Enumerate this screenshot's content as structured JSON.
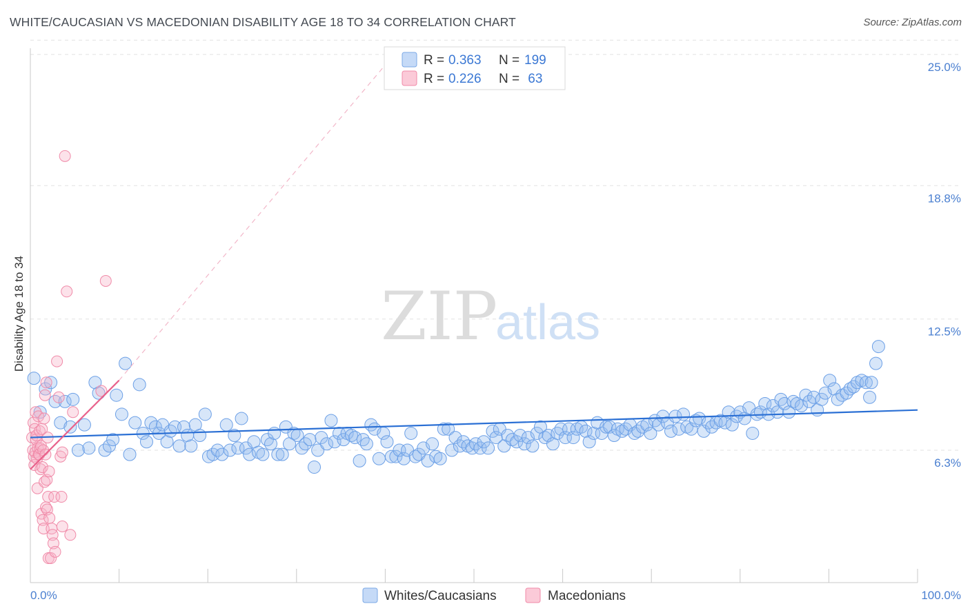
{
  "title": "WHITE/CAUCASIAN VS MACEDONIAN DISABILITY AGE 18 TO 34 CORRELATION CHART",
  "source": "Source: ZipAtlas.com",
  "watermark": {
    "part1": "ZIP",
    "part2": "atlas"
  },
  "colors": {
    "blue": "#6b9fe6",
    "blue_line": "#2a6fd4",
    "pink": "#f08aa8",
    "pink_line": "#e8608a",
    "tick_text": "#4a7fd0"
  },
  "chart_data": {
    "type": "scatter",
    "title": "WHITE/CAUCASIAN VS MACEDONIAN DISABILITY AGE 18 TO 34 CORRELATION CHART",
    "xlabel": "",
    "ylabel": "Disability Age 18 to 34",
    "xlim": [
      0,
      100
    ],
    "ylim": [
      0,
      26
    ],
    "y_ticks": [
      {
        "value": 6.3,
        "label": "6.3%"
      },
      {
        "value": 12.5,
        "label": "12.5%"
      },
      {
        "value": 18.8,
        "label": "18.8%"
      },
      {
        "value": 25.0,
        "label": "25.0%"
      }
    ],
    "x_tick_labels": {
      "min": "0.0%",
      "max": "100.0%"
    },
    "grid": "horizontal-dashed",
    "legend_placement": "top-center",
    "legend": [
      {
        "r_label": "R = ",
        "r": "0.363",
        "n_label": "N = ",
        "n": "199"
      },
      {
        "r_label": "R = ",
        "r": "0.226",
        "n_label": "N = ",
        "n": " 63"
      }
    ],
    "series": [
      {
        "name": "Whites/Caucasians",
        "color": "#6b9fe6",
        "trend": {
          "x": [
            0,
            100
          ],
          "y": [
            6.9,
            8.2
          ]
        },
        "points": [
          [
            0.4,
            9.7
          ],
          [
            1.1,
            8.1
          ],
          [
            1.7,
            9.2
          ],
          [
            2.3,
            9.5
          ],
          [
            2.8,
            8.6
          ],
          [
            3.4,
            7.6
          ],
          [
            3.9,
            8.6
          ],
          [
            4.5,
            7.4
          ],
          [
            4.8,
            8.7
          ],
          [
            5.4,
            6.3
          ],
          [
            6.1,
            7.5
          ],
          [
            6.6,
            6.4
          ],
          [
            7.3,
            9.5
          ],
          [
            7.7,
            9.0
          ],
          [
            8.4,
            6.3
          ],
          [
            8.9,
            6.5
          ],
          [
            9.3,
            6.8
          ],
          [
            9.7,
            8.9
          ],
          [
            10.3,
            8.0
          ],
          [
            10.7,
            10.4
          ],
          [
            11.2,
            6.1
          ],
          [
            11.8,
            7.6
          ],
          [
            12.3,
            9.4
          ],
          [
            12.7,
            7.1
          ],
          [
            13.1,
            6.7
          ],
          [
            13.6,
            7.6
          ],
          [
            14.1,
            7.4
          ],
          [
            14.5,
            7.1
          ],
          [
            14.9,
            7.5
          ],
          [
            15.4,
            6.7
          ],
          [
            15.8,
            7.2
          ],
          [
            16.3,
            7.4
          ],
          [
            16.8,
            6.5
          ],
          [
            17.3,
            7.4
          ],
          [
            17.7,
            7.0
          ],
          [
            18.1,
            6.5
          ],
          [
            18.6,
            7.5
          ],
          [
            19.1,
            7.0
          ],
          [
            19.7,
            8.0
          ],
          [
            20.1,
            6.0
          ],
          [
            20.6,
            6.1
          ],
          [
            21.1,
            6.3
          ],
          [
            21.6,
            6.1
          ],
          [
            22.1,
            7.5
          ],
          [
            22.5,
            6.3
          ],
          [
            23.0,
            7.0
          ],
          [
            23.4,
            6.4
          ],
          [
            23.8,
            7.8
          ],
          [
            24.3,
            6.4
          ],
          [
            24.7,
            6.1
          ],
          [
            25.2,
            6.7
          ],
          [
            25.7,
            6.2
          ],
          [
            26.2,
            6.1
          ],
          [
            26.7,
            6.8
          ],
          [
            27.1,
            6.6
          ],
          [
            27.5,
            7.1
          ],
          [
            27.9,
            6.1
          ],
          [
            28.4,
            6.1
          ],
          [
            28.8,
            7.4
          ],
          [
            29.2,
            6.6
          ],
          [
            29.7,
            7.1
          ],
          [
            30.1,
            7.0
          ],
          [
            30.6,
            6.4
          ],
          [
            31.0,
            6.6
          ],
          [
            31.5,
            6.8
          ],
          [
            32.0,
            5.5
          ],
          [
            32.4,
            6.3
          ],
          [
            32.8,
            6.9
          ],
          [
            33.4,
            6.6
          ],
          [
            33.9,
            7.7
          ],
          [
            34.3,
            6.7
          ],
          [
            34.8,
            7.1
          ],
          [
            35.3,
            6.8
          ],
          [
            35.7,
            7.1
          ],
          [
            36.2,
            7.0
          ],
          [
            36.6,
            6.9
          ],
          [
            37.1,
            5.8
          ],
          [
            37.5,
            6.8
          ],
          [
            37.9,
            6.6
          ],
          [
            38.4,
            7.5
          ],
          [
            38.8,
            7.3
          ],
          [
            39.3,
            5.9
          ],
          [
            39.8,
            7.1
          ],
          [
            40.2,
            6.7
          ],
          [
            40.7,
            6.0
          ],
          [
            41.2,
            6.0
          ],
          [
            41.6,
            6.3
          ],
          [
            42.1,
            5.9
          ],
          [
            42.5,
            6.3
          ],
          [
            42.9,
            7.1
          ],
          [
            43.4,
            6.0
          ],
          [
            43.8,
            6.1
          ],
          [
            44.3,
            6.4
          ],
          [
            44.8,
            5.8
          ],
          [
            45.3,
            6.6
          ],
          [
            45.7,
            6.0
          ],
          [
            46.2,
            5.9
          ],
          [
            46.6,
            7.3
          ],
          [
            47.1,
            7.3
          ],
          [
            47.5,
            6.3
          ],
          [
            47.9,
            6.9
          ],
          [
            48.4,
            6.5
          ],
          [
            48.8,
            6.7
          ],
          [
            49.3,
            6.5
          ],
          [
            49.8,
            6.4
          ],
          [
            50.2,
            6.6
          ],
          [
            50.7,
            6.4
          ],
          [
            51.1,
            6.7
          ],
          [
            51.6,
            6.4
          ],
          [
            52.1,
            7.2
          ],
          [
            52.5,
            6.9
          ],
          [
            52.9,
            7.3
          ],
          [
            53.4,
            6.5
          ],
          [
            53.8,
            7.0
          ],
          [
            54.3,
            6.8
          ],
          [
            54.8,
            6.7
          ],
          [
            55.2,
            7.0
          ],
          [
            55.7,
            6.6
          ],
          [
            56.1,
            6.9
          ],
          [
            56.6,
            6.5
          ],
          [
            57.1,
            7.1
          ],
          [
            57.5,
            7.4
          ],
          [
            58.0,
            6.9
          ],
          [
            58.4,
            7.0
          ],
          [
            58.9,
            6.6
          ],
          [
            59.4,
            7.1
          ],
          [
            59.8,
            7.3
          ],
          [
            60.3,
            6.9
          ],
          [
            60.7,
            7.3
          ],
          [
            61.2,
            6.9
          ],
          [
            61.6,
            7.3
          ],
          [
            62.1,
            7.4
          ],
          [
            62.6,
            7.2
          ],
          [
            63.0,
            6.7
          ],
          [
            63.5,
            7.1
          ],
          [
            63.9,
            7.6
          ],
          [
            64.4,
            7.1
          ],
          [
            64.9,
            7.4
          ],
          [
            65.3,
            7.4
          ],
          [
            65.8,
            7.0
          ],
          [
            66.2,
            7.3
          ],
          [
            66.7,
            7.2
          ],
          [
            67.1,
            7.3
          ],
          [
            67.6,
            7.5
          ],
          [
            68.1,
            7.1
          ],
          [
            68.5,
            7.2
          ],
          [
            69.0,
            7.4
          ],
          [
            69.5,
            7.5
          ],
          [
            69.9,
            7.1
          ],
          [
            70.4,
            7.7
          ],
          [
            70.8,
            7.5
          ],
          [
            71.3,
            7.9
          ],
          [
            71.8,
            7.6
          ],
          [
            72.2,
            7.2
          ],
          [
            72.7,
            7.9
          ],
          [
            73.1,
            7.3
          ],
          [
            73.6,
            8.0
          ],
          [
            74.0,
            7.4
          ],
          [
            74.5,
            7.3
          ],
          [
            75.0,
            7.7
          ],
          [
            75.4,
            7.8
          ],
          [
            75.9,
            7.2
          ],
          [
            76.4,
            7.6
          ],
          [
            76.8,
            7.4
          ],
          [
            77.3,
            7.6
          ],
          [
            77.8,
            7.7
          ],
          [
            78.3,
            7.6
          ],
          [
            78.7,
            8.1
          ],
          [
            79.1,
            7.5
          ],
          [
            79.6,
            7.9
          ],
          [
            80.0,
            8.1
          ],
          [
            80.5,
            7.8
          ],
          [
            81.0,
            8.3
          ],
          [
            81.4,
            7.1
          ],
          [
            81.9,
            8.0
          ],
          [
            82.3,
            8.1
          ],
          [
            82.8,
            8.5
          ],
          [
            83.2,
            8.0
          ],
          [
            83.7,
            8.4
          ],
          [
            84.2,
            8.1
          ],
          [
            84.6,
            8.7
          ],
          [
            85.0,
            8.5
          ],
          [
            85.5,
            8.1
          ],
          [
            86.0,
            8.6
          ],
          [
            86.4,
            8.5
          ],
          [
            86.9,
            8.4
          ],
          [
            87.4,
            8.9
          ],
          [
            87.8,
            8.6
          ],
          [
            88.3,
            8.8
          ],
          [
            88.7,
            8.2
          ],
          [
            89.2,
            8.7
          ],
          [
            89.6,
            9.0
          ],
          [
            90.1,
            9.6
          ],
          [
            90.6,
            9.2
          ],
          [
            91.0,
            8.7
          ],
          [
            91.5,
            8.9
          ],
          [
            92.0,
            9.0
          ],
          [
            92.4,
            9.2
          ],
          [
            92.8,
            9.3
          ],
          [
            93.2,
            9.5
          ],
          [
            93.7,
            9.6
          ],
          [
            94.2,
            9.5
          ],
          [
            94.6,
            8.8
          ],
          [
            94.8,
            9.5
          ],
          [
            95.3,
            10.4
          ],
          [
            95.6,
            11.2
          ]
        ]
      },
      {
        "name": "Macedonians",
        "color": "#f08aa8",
        "trend": {
          "x": [
            0,
            10
          ],
          "y": [
            5.4,
            9.6
          ]
        },
        "trend_dashed": {
          "x": [
            10,
            41
          ],
          "y": [
            9.6,
            25.0
          ]
        },
        "points": [
          [
            0.2,
            6.9
          ],
          [
            0.3,
            6.3
          ],
          [
            0.35,
            7.6
          ],
          [
            0.4,
            6.0
          ],
          [
            0.45,
            5.6
          ],
          [
            0.5,
            7.3
          ],
          [
            0.55,
            6.2
          ],
          [
            0.6,
            8.1
          ],
          [
            0.65,
            6.8
          ],
          [
            0.7,
            7.0
          ],
          [
            0.75,
            5.9
          ],
          [
            0.8,
            4.5
          ],
          [
            0.85,
            6.4
          ],
          [
            0.9,
            7.9
          ],
          [
            0.95,
            6.1
          ],
          [
            1.0,
            6.1
          ],
          [
            1.05,
            7.2
          ],
          [
            1.1,
            6.4
          ],
          [
            1.15,
            5.4
          ],
          [
            1.2,
            6.5
          ],
          [
            1.25,
            3.3
          ],
          [
            1.3,
            7.3
          ],
          [
            1.35,
            5.5
          ],
          [
            1.4,
            3.0
          ],
          [
            1.45,
            6.3
          ],
          [
            1.5,
            2.6
          ],
          [
            1.55,
            7.8
          ],
          [
            1.6,
            4.8
          ],
          [
            1.65,
            8.9
          ],
          [
            1.7,
            6.1
          ],
          [
            1.75,
            3.6
          ],
          [
            1.8,
            9.5
          ],
          [
            1.85,
            4.9
          ],
          [
            1.9,
            3.5
          ],
          [
            1.95,
            6.9
          ],
          [
            2.0,
            4.1
          ],
          [
            2.05,
            1.2
          ],
          [
            2.1,
            5.3
          ],
          [
            2.15,
            3.1
          ],
          [
            2.3,
            1.2
          ],
          [
            2.4,
            2.6
          ],
          [
            2.5,
            2.3
          ],
          [
            2.6,
            1.9
          ],
          [
            2.7,
            4.1
          ],
          [
            2.8,
            1.5
          ],
          [
            3.0,
            10.5
          ],
          [
            3.2,
            8.8
          ],
          [
            3.4,
            6.0
          ],
          [
            3.5,
            4.1
          ],
          [
            3.6,
            6.2
          ],
          [
            3.6,
            2.7
          ],
          [
            3.9,
            20.2
          ],
          [
            4.1,
            13.8
          ],
          [
            4.5,
            2.3
          ],
          [
            4.8,
            8.1
          ],
          [
            8.0,
            9.1
          ],
          [
            8.5,
            14.3
          ]
        ]
      }
    ]
  },
  "bottom_legend": [
    {
      "label": "Whites/Caucasians"
    },
    {
      "label": "Macedonians"
    }
  ]
}
